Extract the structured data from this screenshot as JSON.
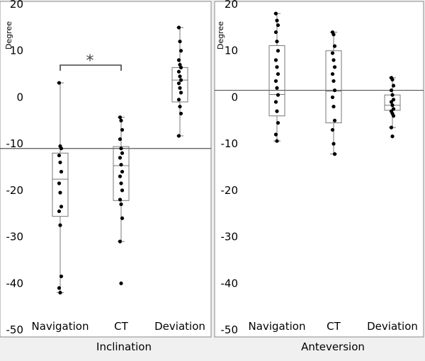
{
  "chart_data": [
    {
      "type": "box",
      "title": "Inclination",
      "ylabel": "Degree",
      "ylim": [
        -50,
        20
      ],
      "yticks": [
        20,
        10,
        0,
        -10,
        -20,
        -30,
        -40,
        -50
      ],
      "ytick_labels": [
        "20",
        "10",
        "0",
        "-10",
        "-20",
        "-30",
        "-40",
        "-50"
      ],
      "reference_line": -11,
      "categories": [
        "Navigation",
        "CT",
        "Deviation"
      ],
      "boxes": [
        {
          "whisker_low": -42,
          "q1": -25.6,
          "median": -17.6,
          "q3": -12,
          "whisker_high": 3.1
        },
        {
          "whisker_low": -31,
          "q1": -22.2,
          "median": -14.7,
          "q3": -10.6,
          "whisker_high": -4.3
        },
        {
          "whisker_low": -8.3,
          "q1": -1,
          "median": 3.7,
          "q3": 6.4,
          "whisker_high": 15
        }
      ],
      "points": [
        [
          3.1,
          -10.5,
          -11,
          -12.5,
          -14,
          -16,
          -18.5,
          -20.5,
          -23.5,
          -24.5,
          -27.5,
          -38.5,
          -41,
          -42
        ],
        [
          -4.3,
          -5,
          -7,
          -9,
          -11,
          -12,
          -13,
          -14.5,
          -16,
          -17,
          -18.5,
          -20,
          -22,
          -23,
          -26,
          -31,
          -40
        ],
        [
          15,
          12,
          10,
          8,
          7,
          6.4,
          5.5,
          4.5,
          3.7,
          3,
          2,
          1,
          -0.5,
          -2,
          -3.5,
          -8.3
        ]
      ],
      "significance": {
        "between": [
          "Navigation",
          "CT"
        ],
        "label": "*"
      }
    },
    {
      "type": "box",
      "title": "Anteversion",
      "ylabel": "Degree",
      "ylim": [
        -50,
        20
      ],
      "yticks": [
        20,
        10,
        0,
        -10,
        -20,
        -30,
        -40,
        -50
      ],
      "ytick_labels": [
        "20",
        "10",
        "0",
        "-10",
        "-20",
        "-30",
        "-40",
        "-50"
      ],
      "reference_line": 1.5,
      "categories": [
        "Navigation",
        "CT",
        "Deviation"
      ],
      "boxes": [
        {
          "whisker_low": -9.4,
          "q1": -4,
          "median": 0.6,
          "q3": 11.1,
          "whisker_high": 18
        },
        {
          "whisker_low": -12.2,
          "q1": -5.5,
          "median": 1.3,
          "q3": 10,
          "whisker_high": 14
        },
        {
          "whisker_low": -6.5,
          "q1": -2.8,
          "median": -1.7,
          "q3": 0.5,
          "whisker_high": 4.2
        }
      ],
      "points": [
        [
          18,
          16.5,
          15.5,
          14,
          12,
          10,
          8,
          6.5,
          5,
          3.5,
          2,
          0.5,
          -1,
          -3,
          -5.5,
          -8,
          -9.4
        ],
        [
          14,
          13.5,
          11,
          9.5,
          8,
          6.5,
          5,
          3.5,
          1.5,
          0,
          -2,
          -5,
          -7,
          -10,
          -12.2
        ],
        [
          4.2,
          3.8,
          2.5,
          1.5,
          0.5,
          -0.5,
          -1,
          -1.7,
          -2.5,
          -3,
          -3.5,
          -4,
          -6.5,
          -8.4
        ]
      ]
    }
  ]
}
